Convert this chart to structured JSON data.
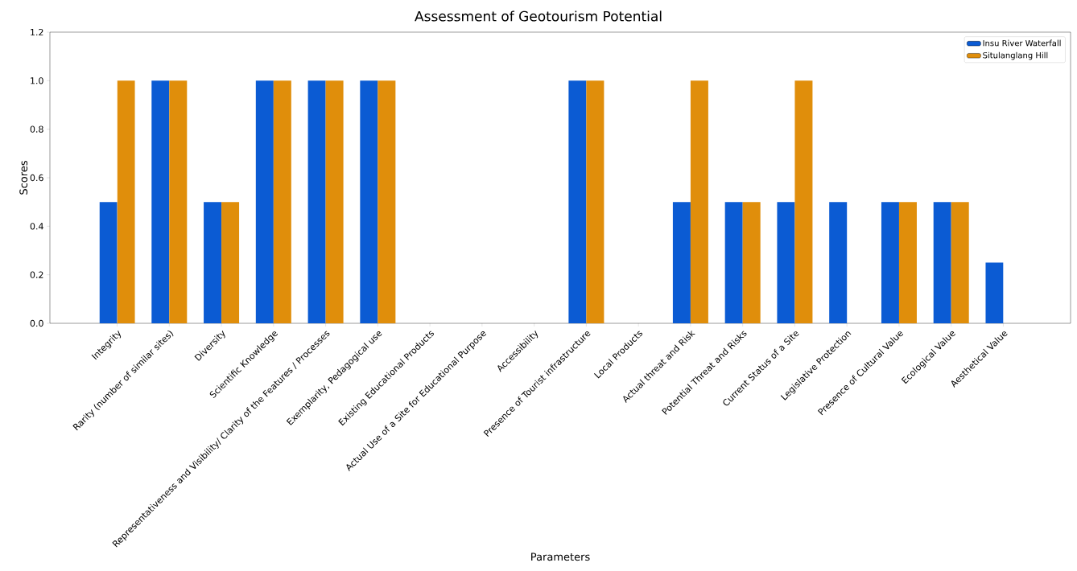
{
  "chart_data": {
    "type": "bar",
    "title": "Assessment of Geotourism Potential",
    "xlabel": "Parameters",
    "ylabel": "Scores",
    "categories": [
      "Integrity",
      "Rarity (number of similar sites)",
      "Diversity",
      "Scientific Knowledge",
      "Representativeness and Visibility/ Clarity of the Features / Processes",
      "Exemplarity, Pedagogical use",
      "Existing Educational Products",
      "Actual Use of a Site for Educational Purpose",
      "Accessibility",
      "Presence of Tourist infrastructure",
      "Local Products",
      "Actual threat and Risk",
      "Potential Threat and Risks",
      "Current Status of a Site",
      "Legislative Protection",
      "Presence of Cultural Value",
      "Ecological Value",
      "Aesthetical Value"
    ],
    "series": [
      {
        "name": "Insu River Waterfall",
        "color": "#0b5bd3",
        "values": [
          0.5,
          1,
          0.5,
          1,
          1,
          1,
          0,
          0,
          0,
          1,
          0,
          0.5,
          0.5,
          0.5,
          0.5,
          0.5,
          0.5,
          0.25
        ]
      },
      {
        "name": "Situlanglang Hill",
        "color": "#e08e0b",
        "values": [
          1,
          1,
          0.5,
          1,
          1,
          1,
          0,
          0,
          0,
          1,
          0,
          1,
          0.5,
          1,
          0,
          0.5,
          0.5,
          0
        ]
      }
    ],
    "ylim": [
      0,
      1.2
    ],
    "yticks": [
      {
        "value": 0,
        "label": "0.0"
      },
      {
        "value": 0.2,
        "label": "0.2"
      },
      {
        "value": 0.4,
        "label": "0.4"
      },
      {
        "value": 0.6,
        "label": "0.6"
      },
      {
        "value": 0.8,
        "label": "0.8"
      },
      {
        "value": 1,
        "label": "1.0"
      },
      {
        "value": 1.2,
        "label": "1.2"
      }
    ],
    "grid": false,
    "legend": "top right"
  }
}
